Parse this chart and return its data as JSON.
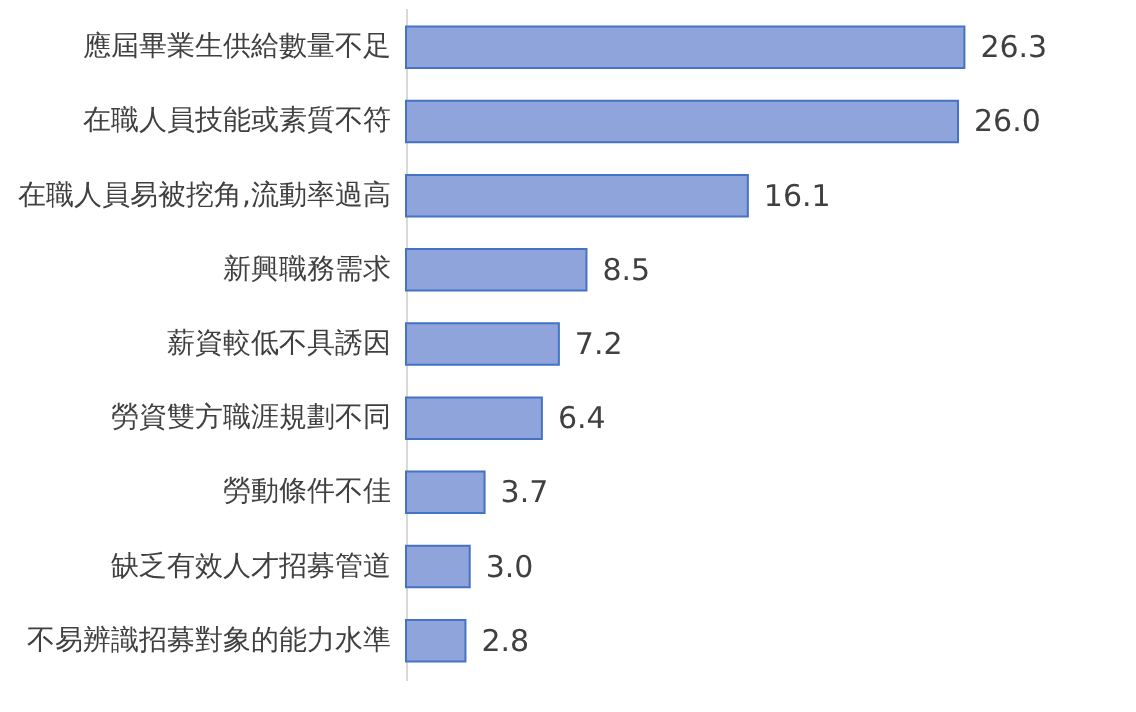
{
  "chart_data": {
    "type": "bar",
    "orientation": "horizontal",
    "categories": [
      "應屆畢業生供給數量不足",
      "在職人員技能或素質不符",
      "在職人員易被挖角,流動率過高",
      "新興職務需求",
      "薪資較低不具誘因",
      "勞資雙方職涯規劃不同",
      "勞動條件不佳",
      "缺乏有效人才招募管道",
      "不易辨識招募對象的能力水準"
    ],
    "values": [
      26.3,
      26.0,
      16.1,
      8.5,
      7.2,
      6.4,
      3.7,
      3.0,
      2.8
    ],
    "color": "#8fa4da",
    "value_labels": [
      "26.3",
      "26.0",
      "16.1",
      "8.5",
      "7.2",
      "6.4",
      "3.7",
      "3.0",
      "2.8"
    ]
  }
}
